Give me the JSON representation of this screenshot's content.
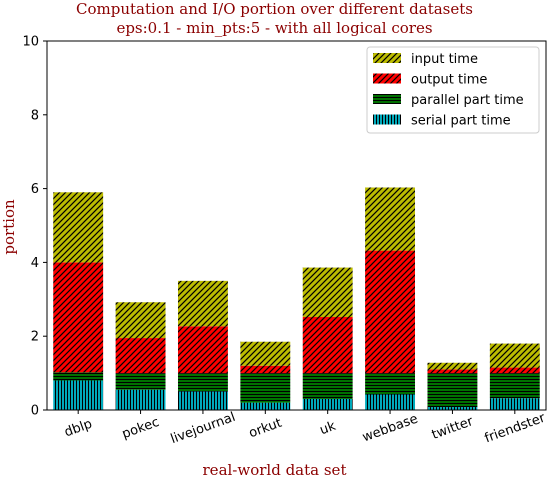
{
  "chart_data": {
    "type": "bar",
    "stacked": true,
    "title": "Computation and I/O portion over different datasets",
    "subtitle": "eps:0.1 - min_pts:5 - with all logical cores",
    "xlabel": "real-world data set",
    "ylabel": "portion",
    "ylim": [
      0,
      10
    ],
    "yticks": [
      "0",
      "2",
      "4",
      "6",
      "8",
      "10"
    ],
    "categories": [
      "dblp",
      "pokec",
      "livejournal",
      "orkut",
      "uk",
      "webbase",
      "twitter",
      "friendster"
    ],
    "grid": false,
    "legend_position": "top-right",
    "series": [
      {
        "name": "serial part time",
        "color": "#00bcd0",
        "hatch": "vertical",
        "values": [
          0.8,
          0.55,
          0.5,
          0.2,
          0.3,
          0.42,
          0.08,
          0.32
        ]
      },
      {
        "name": "parallel part time",
        "color": "#008000",
        "hatch": "horizontal",
        "values": [
          0.22,
          0.45,
          0.5,
          0.8,
          0.7,
          0.58,
          0.92,
          0.68
        ]
      },
      {
        "name": "output time",
        "color": "#ff0000",
        "hatch": "diagonal",
        "values": [
          2.98,
          0.95,
          1.27,
          0.2,
          1.52,
          3.32,
          0.1,
          0.15
        ]
      },
      {
        "name": "input time",
        "color": "#bcbc00",
        "hatch": "diagonal",
        "values": [
          1.9,
          0.97,
          1.23,
          0.65,
          1.34,
          1.71,
          0.18,
          0.65
        ]
      }
    ],
    "legend_order": [
      "input time",
      "output time",
      "parallel part time",
      "serial part time"
    ]
  }
}
